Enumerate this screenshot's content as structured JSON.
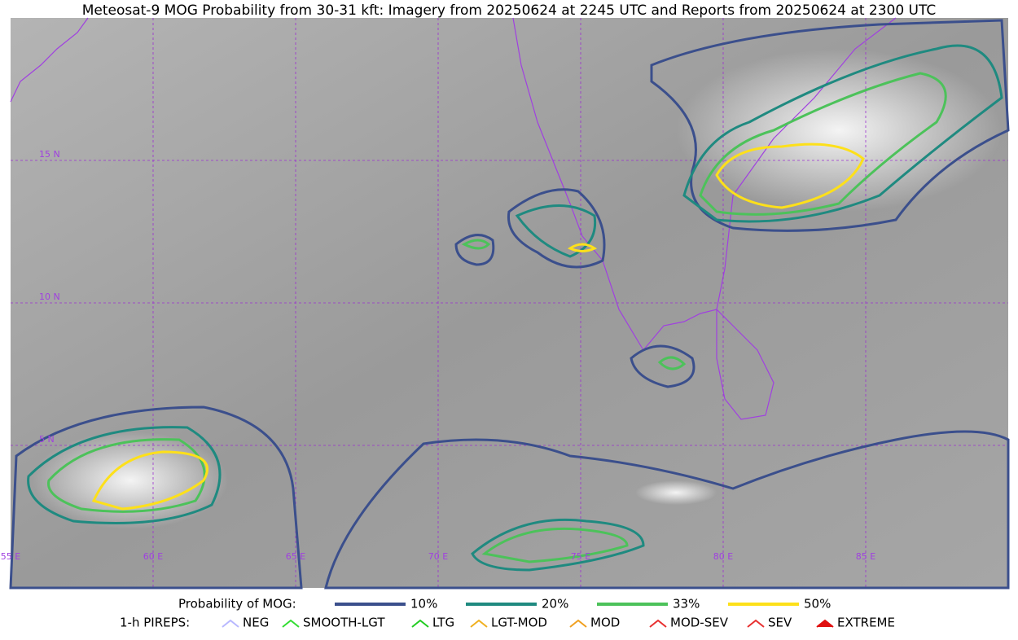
{
  "title": "Meteosat-9 MOG Probability from 30-31 kft: Imagery from 20250624 at 2245 UTC and Reports from 20250624 at 2300 UTC",
  "map": {
    "lat_labels": [
      "15 N",
      "10 N",
      "5 N"
    ],
    "lon_labels": [
      "55 E",
      "60 E",
      "65 E",
      "70 E",
      "75 E",
      "80 E",
      "85 E"
    ]
  },
  "legend": {
    "probability": {
      "title": "Probability of MOG:",
      "items": [
        {
          "label": "10%",
          "color": "#3b4f8c"
        },
        {
          "label": "20%",
          "color": "#1f8a80"
        },
        {
          "label": "33%",
          "color": "#4cc25a"
        },
        {
          "label": "50%",
          "color": "#fde01a"
        }
      ]
    },
    "pireps": {
      "title": "1-h PIREPS:",
      "items": [
        {
          "label": "NEG",
          "color": "#b8b8ff"
        },
        {
          "label": "SMOOTH-LGT",
          "color": "#33dd33"
        },
        {
          "label": "LTG",
          "color": "#22cc22"
        },
        {
          "label": "LGT-MOD",
          "color": "#f0b020"
        },
        {
          "label": "MOD",
          "color": "#f0a020"
        },
        {
          "label": "MOD-SEV",
          "color": "#e83030"
        },
        {
          "label": "SEV",
          "color": "#e83030"
        },
        {
          "label": "EXTREME",
          "color": "#e01010"
        }
      ]
    }
  }
}
